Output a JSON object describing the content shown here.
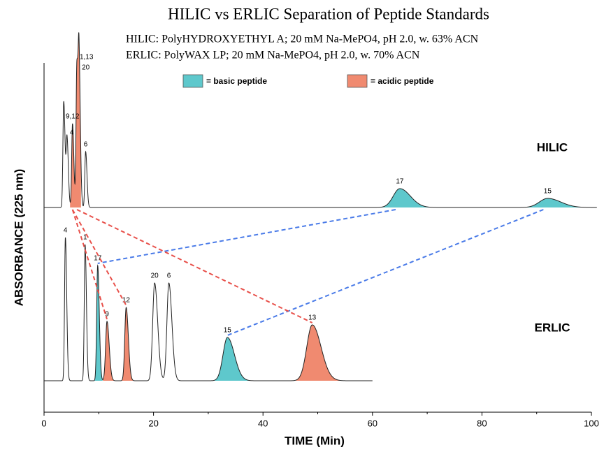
{
  "chart_data": {
    "type": "chromatogram",
    "title": "HILIC vs ERLIC Separation of Peptide Standards",
    "subtitle": [
      "HILIC:  PolyHYDROXYETHYL A; 20 mM Na-MePO4, pH 2.0, w. 63% ACN",
      "ERLIC:  PolyWAX LP; 20 mM Na-MePO4, pH 2.0, w. 70% ACN"
    ],
    "xlabel": "TIME (Min)",
    "ylabel": "ABSORBANCE (225 nm)",
    "xlim": [
      0,
      100
    ],
    "xticks": [
      0,
      20,
      40,
      60,
      80,
      100
    ],
    "xminorticks": [
      10,
      30,
      50,
      70,
      90
    ],
    "legend": [
      {
        "name": "= basic peptide",
        "color": "#5ec8cc",
        "line_color": "#4a7be8"
      },
      {
        "name": "= acidic peptide",
        "color": "#f08a70",
        "line_color": "#e8504a"
      }
    ],
    "traces": [
      {
        "name": "HILIC",
        "time_range": [
          0,
          101
        ],
        "peaks": [
          {
            "label": null,
            "time": 3.6,
            "height": 152,
            "width": 0.15,
            "color": null
          },
          {
            "label": "4",
            "time": 4.2,
            "height": 97,
            "width": 0.15,
            "color": null
          },
          {
            "label": "9,12",
            "time": 5.2,
            "height": 120,
            "width": 0.15,
            "color": "#f08a70"
          },
          {
            "label": "1,13",
            "time": 6.0,
            "height": 205,
            "width": 0.15,
            "color": "#f08a70"
          },
          {
            "label": "20",
            "time": 6.4,
            "height": 190,
            "width": 0.15,
            "color": null
          },
          {
            "label": "6",
            "time": 7.6,
            "height": 80,
            "width": 0.15,
            "color": null
          },
          {
            "label": "17",
            "time": 65,
            "height": 27,
            "width": 1.2,
            "color": "#5ec8cc"
          },
          {
            "label": "15",
            "time": 92,
            "height": 13,
            "width": 1.5,
            "color": "#5ec8cc"
          }
        ]
      },
      {
        "name": "ERLIC",
        "time_range": [
          0,
          60
        ],
        "peaks": [
          {
            "label": "4",
            "time": 3.9,
            "height": 205,
            "width": 0.15,
            "color": null
          },
          {
            "label": "1",
            "time": 7.5,
            "height": 195,
            "width": 0.15,
            "color": null
          },
          {
            "label": "17",
            "time": 9.8,
            "height": 165,
            "width": 0.18,
            "color": "#5ec8cc"
          },
          {
            "label": "9",
            "time": 11.5,
            "height": 85,
            "width": 0.25,
            "color": "#f08a70"
          },
          {
            "label": "12",
            "time": 15,
            "height": 105,
            "width": 0.25,
            "color": "#f08a70"
          },
          {
            "label": "20",
            "time": 20.2,
            "height": 140,
            "width": 0.35,
            "color": null
          },
          {
            "label": "6",
            "time": 22.8,
            "height": 140,
            "width": 0.35,
            "color": null
          },
          {
            "label": "15",
            "time": 33.5,
            "height": 62,
            "width": 0.8,
            "color": "#5ec8cc"
          },
          {
            "label": "13",
            "time": 49,
            "height": 80,
            "width": 1.0,
            "color": "#f08a70"
          }
        ]
      }
    ]
  }
}
